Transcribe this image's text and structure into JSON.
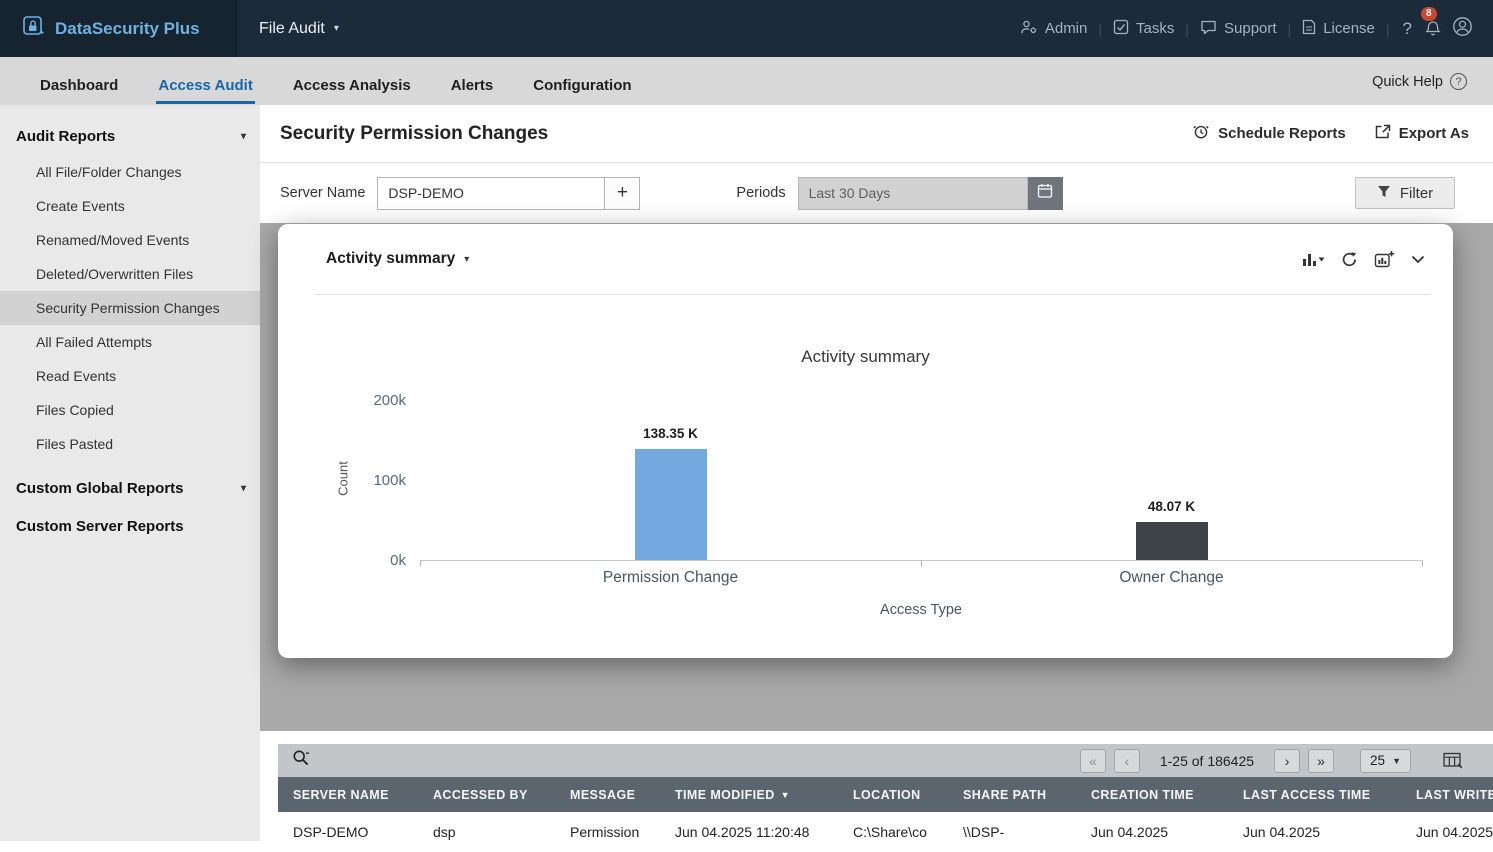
{
  "topbar": {
    "product": "DataSecurity Plus",
    "module": "File Audit",
    "items": [
      "Admin",
      "Tasks",
      "Support",
      "License"
    ],
    "help": "?",
    "notification_count": "8"
  },
  "nav": {
    "tabs": [
      "Dashboard",
      "Access Audit",
      "Access Analysis",
      "Alerts",
      "Configuration"
    ],
    "active_tab": "Access Audit",
    "quick_help": "Quick Help"
  },
  "sidebar": {
    "audit_reports": {
      "title": "Audit Reports",
      "items": [
        "All File/Folder Changes",
        "Create Events",
        "Renamed/Moved Events",
        "Deleted/Overwritten Files",
        "Security Permission Changes",
        "All Failed Attempts",
        "Read Events",
        "Files Copied",
        "Files Pasted"
      ],
      "selected": "Security Permission Changes"
    },
    "custom_global_title": "Custom Global Reports",
    "custom_server_title": "Custom Server Reports"
  },
  "page": {
    "title": "Security Permission Changes",
    "schedule_reports_label": "Schedule Reports",
    "export_as_label": "Export As"
  },
  "filters": {
    "server_name_label": "Server Name",
    "server_name_value": "DSP-DEMO",
    "add_button": "+",
    "periods_label": "Periods",
    "periods_value": "Last 30 Days",
    "filter_button": "Filter"
  },
  "panel": {
    "title": "Activity summary"
  },
  "chart_data": {
    "type": "bar",
    "title": "Activity summary",
    "categories": [
      "Permission Change",
      "Owner Change"
    ],
    "values": [
      138350,
      48070
    ],
    "value_labels": [
      "138.35 K",
      "48.07 K"
    ],
    "bar_colors": [
      "#72a9de",
      "#3d4349"
    ],
    "xlabel": "Access Type",
    "ylabel": "Count",
    "ylim": [
      0,
      200000
    ],
    "yticks": [
      "0k",
      "100k",
      "200k"
    ],
    "grid": false,
    "legend": false
  },
  "pagination": {
    "range": "1-25 of 186425",
    "page_size": "25"
  },
  "table": {
    "columns": [
      "SERVER NAME",
      "ACCESSED BY",
      "MESSAGE",
      "TIME MODIFIED",
      "LOCATION",
      "SHARE PATH",
      "CREATION TIME",
      "LAST ACCESS TIME",
      "LAST WRITE TIME"
    ],
    "sort_column": "TIME MODIFIED",
    "rows": [
      [
        "DSP-DEMO",
        "dsp",
        "Permission",
        "Jun 04.2025 11:20:48",
        "C:\\Share\\co",
        "\\\\DSP-",
        "Jun 04.2025",
        "Jun 04.2025",
        "Jun 04.2025"
      ]
    ]
  }
}
